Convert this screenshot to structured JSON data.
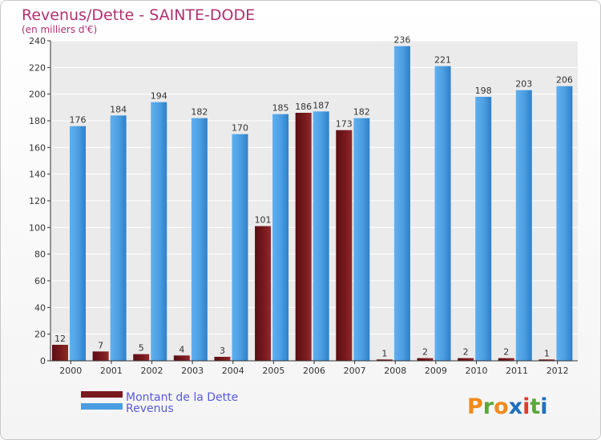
{
  "chart_data": {
    "type": "bar",
    "title": "Revenus/Dette - SAINTE-DODE",
    "subtitle": "(en milliers d'€)",
    "categories": [
      "2000",
      "2001",
      "2002",
      "2003",
      "2004",
      "2005",
      "2006",
      "2007",
      "2008",
      "2009",
      "2010",
      "2011",
      "2012"
    ],
    "series": [
      {
        "name": "Montant de la Dette",
        "color": "#7a1a1e",
        "values": [
          12,
          7,
          5,
          4,
          3,
          101,
          186,
          173,
          1,
          2,
          2,
          2,
          1
        ]
      },
      {
        "name": "Revenus",
        "color": "#4a9de0",
        "values": [
          176,
          184,
          194,
          182,
          170,
          185,
          187,
          182,
          236,
          221,
          198,
          203,
          206
        ]
      }
    ],
    "yticks": [
      0,
      20,
      40,
      60,
      80,
      100,
      120,
      140,
      160,
      180,
      200,
      220,
      240
    ],
    "ylim": [
      0,
      240
    ],
    "grid": true,
    "legend": "bottom-left"
  },
  "branding": {
    "logo_letters": [
      "P",
      "r",
      "o",
      "x",
      "i",
      "t",
      "i"
    ],
    "logo_colors": [
      "#f08a1c",
      "#5aa83a",
      "#f08a1c",
      "#1f6fc0",
      "#e23a2a",
      "#5aa83a",
      "#1f6fc0"
    ]
  },
  "colors": {
    "title": "#b03070",
    "legend_text": "#5a5ad8",
    "grid": "#ffffff",
    "plot_bg": "#ebebeb"
  }
}
